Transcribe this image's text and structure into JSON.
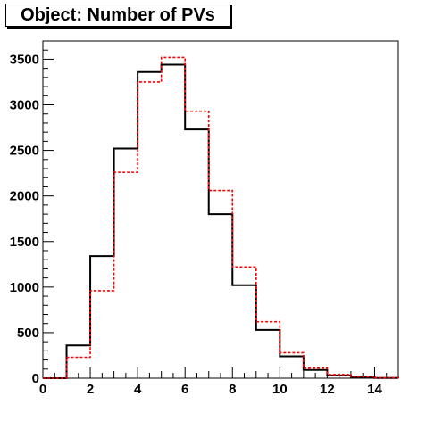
{
  "chart_data": {
    "type": "histogram",
    "title": "Object: Number of PVs",
    "xlabel": "",
    "ylabel": "",
    "xlim": [
      0,
      15
    ],
    "ylim": [
      0,
      3700
    ],
    "x_ticks": [
      0,
      2,
      4,
      6,
      8,
      10,
      12,
      14
    ],
    "y_ticks": [
      0,
      500,
      1000,
      1500,
      2000,
      2500,
      3000,
      3500
    ],
    "bin_edges": [
      0,
      1,
      2,
      3,
      4,
      5,
      6,
      7,
      8,
      9,
      10,
      11,
      12,
      13,
      14,
      15
    ],
    "grid": false,
    "series": [
      {
        "style": "solid",
        "color": "#000000",
        "values": [
          0,
          360,
          1340,
          2520,
          3360,
          3440,
          2730,
          1800,
          1020,
          530,
          240,
          90,
          30,
          10,
          2
        ]
      },
      {
        "style": "dashed",
        "color": "#ff0000",
        "values": [
          0,
          230,
          960,
          2260,
          3250,
          3520,
          2930,
          2060,
          1220,
          620,
          280,
          110,
          40,
          15,
          4
        ]
      }
    ]
  }
}
